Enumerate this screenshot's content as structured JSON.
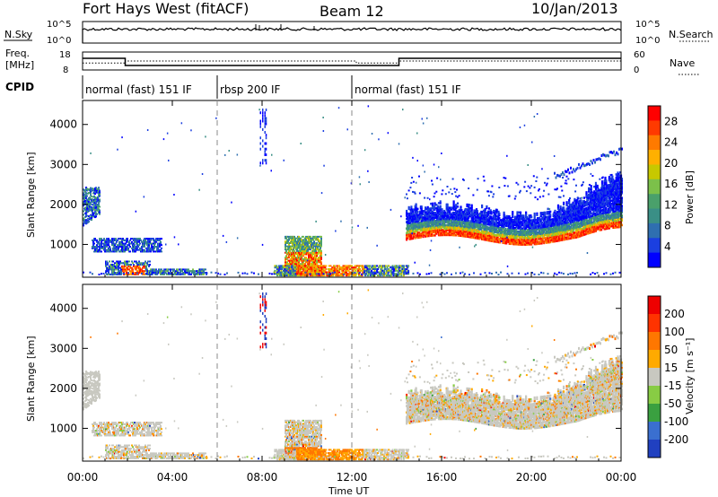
{
  "title": {
    "station": "Fort Hays West (fitACF)",
    "beam": "Beam 12",
    "date": "10/Jan/2013"
  },
  "top_panels": {
    "nsky_label": "N.Sky",
    "nsky_ticks": [
      "10^5",
      "10^0"
    ],
    "nsearch_label": "N.Search",
    "nsearch_ticks": [
      "10^5",
      "10^0"
    ],
    "freq_label_line1": "Freq.",
    "freq_label_line2": "[MHz]",
    "freq_ticks": [
      "18",
      "8"
    ],
    "nave_label": "Nave",
    "nave_ticks": [
      "60",
      "0"
    ],
    "cpid_label": "CPID"
  },
  "cpid_segments": [
    {
      "label": "normal (fast) 151 IF",
      "start_h": 0,
      "end_h": 6
    },
    {
      "label": "rbsp 200 IF",
      "start_h": 6,
      "end_h": 12
    },
    {
      "label": "normal (fast) 151 IF",
      "start_h": 12,
      "end_h": 24
    }
  ],
  "freq_series": {
    "name": "Freq.",
    "ylim": [
      8,
      18
    ],
    "x": [
      0,
      1.9,
      1.9,
      12.2,
      12.2,
      14.1,
      14.1,
      24
    ],
    "y": [
      14.5,
      14.5,
      10.5,
      10.5,
      10.5,
      10.5,
      14.5,
      14.5
    ]
  },
  "nave_series": {
    "name": "Nave",
    "ylim": [
      0,
      60
    ],
    "x": [
      0,
      1.9,
      1.9,
      12.2,
      12.2,
      14.1,
      14.1,
      24
    ],
    "y": [
      23,
      23,
      30,
      30,
      23,
      23,
      30,
      30
    ]
  },
  "x_axis": {
    "label": "Time UT",
    "ticks": [
      "00:00",
      "04:00",
      "08:00",
      "12:00",
      "16:00",
      "20:00",
      "00:00"
    ],
    "range_hours": [
      0,
      24
    ]
  },
  "chart_data": [
    {
      "type": "heatmap",
      "parameter": "power",
      "ylabel": "Slant Range [km]",
      "yticks": [
        "1000",
        "2000",
        "3000",
        "4000"
      ],
      "ylim": [
        180,
        4600
      ],
      "colorbar_label": "Power [dB]",
      "colorbar_ticks": [
        "4",
        "8",
        "12",
        "16",
        "20",
        "24",
        "28"
      ],
      "colors": [
        "#0000ff",
        "#1b3fe0",
        "#2f6fb0",
        "#3a8f86",
        "#4aa06b",
        "#7cc04a",
        "#c7c800",
        "#ffb000",
        "#ff7a00",
        "#ff3a00",
        "#ff0000"
      ],
      "features": [
        {
          "desc": "early echoes 00:00-00:45",
          "t": [
            0.0,
            0.75
          ],
          "r": [
            1500,
            2400
          ]
        },
        {
          "desc": "band ~1100 km 00:30-03:30",
          "t": [
            0.5,
            3.5
          ],
          "r": [
            850,
            1150
          ]
        },
        {
          "desc": "near range 01:00-05:30",
          "t": [
            1.0,
            5.5
          ],
          "r": [
            250,
            550
          ]
        },
        {
          "desc": "patch 09:00-10:30",
          "t": [
            9.0,
            10.5
          ],
          "r": [
            300,
            1200
          ]
        },
        {
          "desc": "near range 09:30-14:30",
          "t": [
            9.5,
            14.5
          ],
          "r": [
            200,
            450
          ]
        },
        {
          "desc": "main band 14:30-24:00",
          "t": [
            14.5,
            24.0
          ],
          "r": [
            1050,
            2400
          ]
        }
      ]
    },
    {
      "type": "heatmap",
      "parameter": "velocity",
      "ylabel": "Slant Range [km]",
      "yticks": [
        "1000",
        "2000",
        "3000",
        "4000"
      ],
      "ylim": [
        180,
        4600
      ],
      "colorbar_label": "Velocity [m s⁻¹]",
      "colorbar_ticks": [
        "200",
        "100",
        "50",
        "15",
        "-15",
        "-50",
        "-100",
        "-200"
      ],
      "colors": [
        "#2040c0",
        "#3a6fd0",
        "#3aa040",
        "#88cc44",
        "#c8c8c0",
        "#ffaa00",
        "#ff7700",
        "#ff3300",
        "#ee0000"
      ]
    }
  ]
}
